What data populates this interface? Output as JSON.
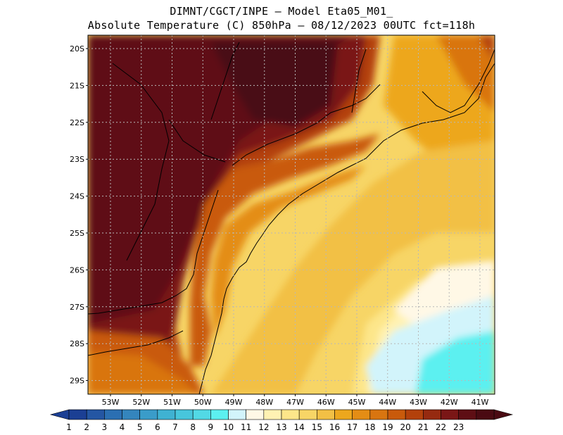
{
  "header": {
    "line1": "DIMNT/CGCT/INPE –  Model Eta05_M01_",
    "line2": "Absolute Temperature (C) 850hPa –  08/12/2023 00UTC fct=118h"
  },
  "map": {
    "lat_labels": [
      "20S",
      "21S",
      "22S",
      "23S",
      "24S",
      "25S",
      "26S",
      "27S",
      "28S",
      "29S"
    ],
    "lon_labels": [
      "53W",
      "52W",
      "51W",
      "50W",
      "49W",
      "48W",
      "47W",
      "46W",
      "45W",
      "44W",
      "43W",
      "42W",
      "41W"
    ],
    "gridlines": true
  },
  "colorbar": {
    "labels": [
      "1",
      "2",
      "3",
      "4",
      "5",
      "6",
      "7",
      "8",
      "9",
      "10",
      "11",
      "12",
      "13",
      "14",
      "15",
      "16",
      "17",
      "18",
      "19",
      "20",
      "21",
      "22",
      "23"
    ],
    "colors": [
      "#1b3f94",
      "#2456a3",
      "#2b6fb2",
      "#3485bd",
      "#3a9cc9",
      "#3fb2d2",
      "#47c6dc",
      "#52d9e5",
      "#5cf0f0",
      "#d2f4fb",
      "#fff8e6",
      "#fff2b3",
      "#fde68a",
      "#f7d566",
      "#f2c045",
      "#eda71d",
      "#e48d15",
      "#d97510",
      "#c95a0b",
      "#b3410b",
      "#962a10",
      "#7a1616",
      "#5e0e14",
      "#4a0a12"
    ],
    "min_color": "#1b3f94",
    "max_color": "#4a0a12"
  }
}
